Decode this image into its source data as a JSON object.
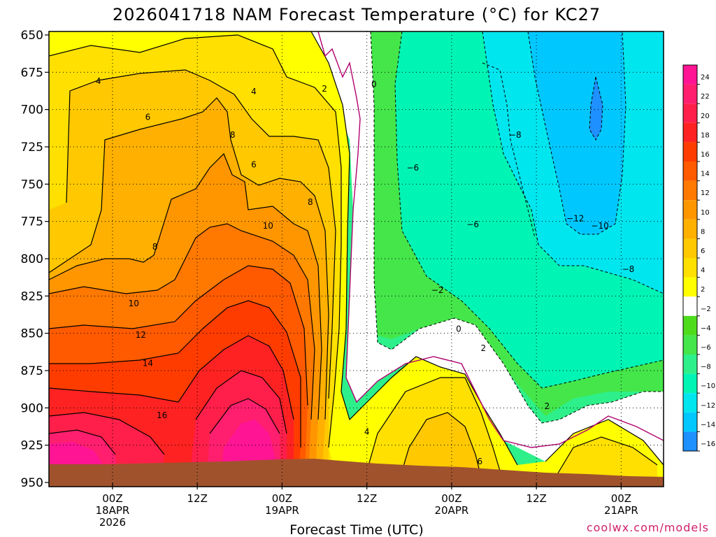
{
  "chart_data": {
    "type": "contour",
    "title": "2026041718 NAM Forecast Temperature (°C) for KC27",
    "xlabel": "Forecast Time (UTC)",
    "y_axis": {
      "unit": "hPa",
      "ticks": [
        650,
        675,
        700,
        725,
        750,
        775,
        800,
        825,
        850,
        875,
        900,
        925,
        950
      ],
      "range": [
        650,
        950
      ],
      "inverted": true
    },
    "x_axis": {
      "range_hours": [
        -3,
        84
      ],
      "ticks": [
        {
          "h": 6,
          "lines": [
            "00Z",
            "18APR",
            "2026"
          ]
        },
        {
          "h": 18,
          "lines": [
            "12Z"
          ]
        },
        {
          "h": 30,
          "lines": [
            "00Z",
            "19APR"
          ]
        },
        {
          "h": 42,
          "lines": [
            "12Z"
          ]
        },
        {
          "h": 54,
          "lines": [
            "00Z",
            "20APR"
          ]
        },
        {
          "h": 66,
          "lines": [
            "12Z"
          ]
        },
        {
          "h": 78,
          "lines": [
            "00Z",
            "21APR"
          ]
        }
      ]
    },
    "grid": "dotted",
    "colorbar": {
      "position": "right",
      "labels": [
        "24",
        "22",
        "20",
        "18",
        "16",
        "14",
        "12",
        "10",
        "8",
        "6",
        "4",
        "2",
        "−2",
        "−4",
        "−6",
        "−8",
        "−10",
        "−12",
        "−14",
        "−16"
      ],
      "colors": [
        "#ff1493",
        "#ff1f6e",
        "#ff1f4a",
        "#ff2222",
        "#ff3c00",
        "#ff5a00",
        "#ff7800",
        "#ff9600",
        "#ffb000",
        "#ffc800",
        "#ffe000",
        "#ffff00",
        "#ffffff",
        "#4ddc1c",
        "#44e64a",
        "#2ef08a",
        "#00f5b4",
        "#00e6ef",
        "#00c8ff",
        "#1e90ff"
      ]
    },
    "contour_labels": [
      {
        "t": "4",
        "h": 4,
        "p": 681
      },
      {
        "t": "4",
        "h": 26,
        "p": 688
      },
      {
        "t": "2",
        "h": 36,
        "p": 686
      },
      {
        "t": "0",
        "h": 43,
        "p": 683
      },
      {
        "t": "6",
        "h": 11,
        "p": 705
      },
      {
        "t": "8",
        "h": 23,
        "p": 717
      },
      {
        "t": "6",
        "h": 26,
        "p": 737
      },
      {
        "t": "8",
        "h": 34,
        "p": 762
      },
      {
        "t": "10",
        "h": 28,
        "p": 778
      },
      {
        "t": "8",
        "h": 12,
        "p": 792
      },
      {
        "t": "10",
        "h": 9,
        "p": 830
      },
      {
        "t": "12",
        "h": 10,
        "p": 851
      },
      {
        "t": "14",
        "h": 11,
        "p": 870
      },
      {
        "t": "16",
        "h": 13,
        "p": 905
      },
      {
        "t": "−6",
        "h": 48.5,
        "p": 739
      },
      {
        "t": "−8",
        "h": 63,
        "p": 717
      },
      {
        "t": "−6",
        "h": 57,
        "p": 777
      },
      {
        "t": "−12",
        "h": 71.5,
        "p": 773
      },
      {
        "t": "−10",
        "h": 75,
        "p": 778
      },
      {
        "t": "−8",
        "h": 79,
        "p": 807
      },
      {
        "t": "−2",
        "h": 52,
        "p": 821
      },
      {
        "t": "0",
        "h": 55,
        "p": 847
      },
      {
        "t": "2",
        "h": 58.5,
        "p": 860
      },
      {
        "t": "4",
        "h": 42,
        "p": 916
      },
      {
        "t": "6",
        "h": 58,
        "p": 936
      },
      {
        "t": "2",
        "h": 67.5,
        "p": 899
      }
    ]
  },
  "credit": "coolwx.com/models"
}
